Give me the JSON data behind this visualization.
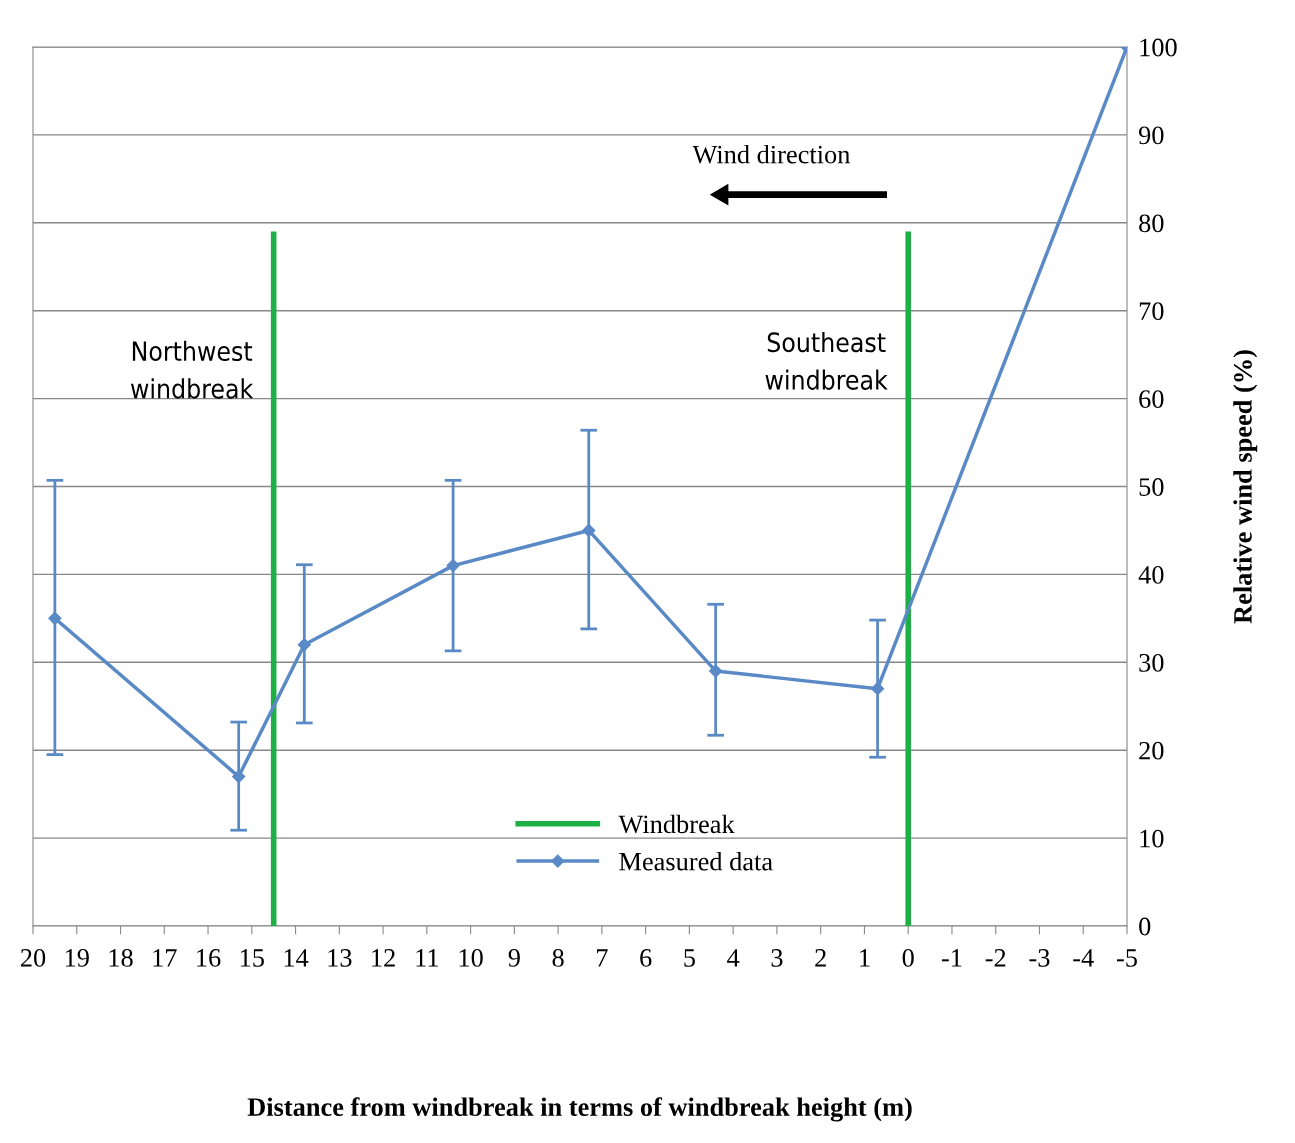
{
  "chart_data": {
    "type": "line",
    "xlabel": "Distance from windbreak in terms of windbreak height (m)",
    "ylabel": "Relative wind speed (%)",
    "xlim": [
      20,
      -5
    ],
    "xticks": [
      20,
      19,
      18,
      17,
      16,
      15,
      14,
      13,
      12,
      11,
      10,
      9,
      8,
      7,
      6,
      5,
      4,
      3,
      2,
      1,
      0,
      -1,
      -2,
      -3,
      -4,
      -5
    ],
    "ylim": [
      0,
      100
    ],
    "yticks": [
      0,
      10,
      20,
      30,
      40,
      50,
      60,
      70,
      80,
      90,
      100
    ],
    "grid": "y",
    "legend": "bottom",
    "series": [
      {
        "name": "Windbreak",
        "color": "#1db044",
        "marker": "none",
        "x": [
          14.5,
          14.5,
          7,
          0,
          0
        ],
        "values": [
          0,
          79,
          null,
          0,
          79
        ]
      },
      {
        "name": "Measured data",
        "color": "#5a8ac6",
        "marker": "diamond",
        "x": [
          19.5,
          15.3,
          13.8,
          10.4,
          7.3,
          4.4,
          0.7,
          -5
        ],
        "values": [
          35,
          17,
          32,
          41,
          45,
          29,
          27,
          100
        ],
        "errors": [
          [
            19.5,
            50.7
          ],
          [
            10.9,
            23.2
          ],
          [
            23.1,
            41.1
          ],
          [
            31.3,
            50.7
          ],
          [
            33.8,
            56.4
          ],
          [
            21.7,
            36.6
          ],
          [
            19.2,
            34.8
          ],
          null
        ]
      }
    ],
    "annotations": [
      "Northwest windbreak",
      "Southeast windbreak",
      "Wind direction"
    ]
  }
}
